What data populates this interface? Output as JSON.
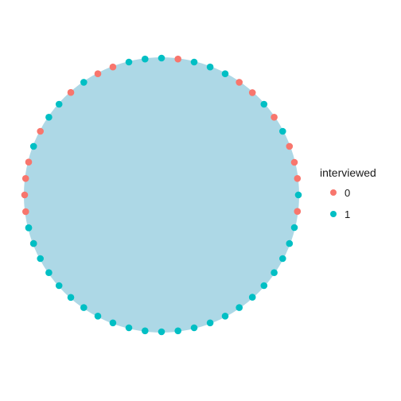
{
  "chart_data": {
    "type": "scatter",
    "title": "",
    "xlabel": "",
    "ylabel": "",
    "fill_color": "#ADD8E6",
    "legend": {
      "title": "interviewed",
      "position": "right",
      "entries": [
        {
          "label": "0",
          "color": "#F8766D"
        },
        {
          "label": "1",
          "color": "#00BFC4"
        }
      ]
    },
    "series": [
      {
        "interviewed": "0",
        "color": "#F8766D",
        "angles_deg": [
          83.1,
          55.4,
          48.4,
          34.6,
          20.8,
          13.8,
          6.9,
          -6.9,
          166.1,
          152.3,
          131.5,
          117.7,
          110.8,
          173.1,
          180.0,
          187.0,
          200.8
        ]
      },
      {
        "interviewed": "1",
        "color": "#00BFC4",
        "angles_deg": [
          90.0,
          76.2,
          69.2,
          62.3,
          41.5,
          27.7,
          0.0,
          -13.8,
          -20.8,
          -27.7,
          -34.6,
          -41.5,
          -48.4,
          -55.4,
          -62.3,
          -69.2,
          -76.2,
          -83.1,
          -90.0,
          -96.9,
          -103.8,
          -110.8,
          -117.7,
          -124.6,
          -131.5,
          -138.5,
          -145.4,
          -152.3,
          -159.2,
          -166.1,
          96.9,
          103.8,
          124.6,
          138.5,
          145.4,
          159.2,
          193.9
        ]
      }
    ]
  }
}
